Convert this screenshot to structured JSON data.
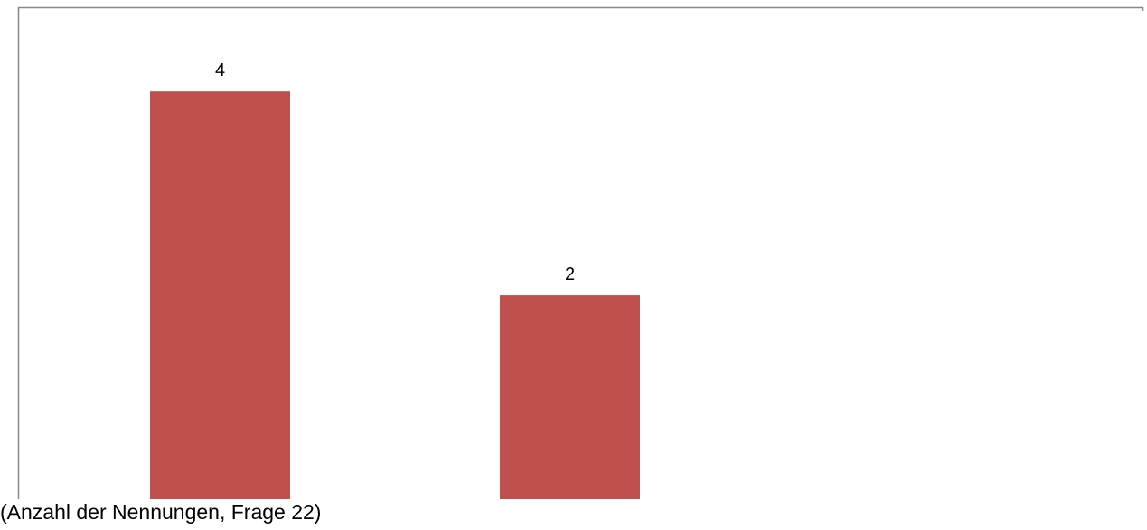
{
  "chart_data": {
    "type": "bar",
    "categories": [
      "",
      ""
    ],
    "values": [
      4,
      2
    ],
    "data_labels": [
      "4",
      "2"
    ],
    "ylim": [
      0,
      4.4
    ],
    "grid": false,
    "legend": "none",
    "bar_color": "#c0504d",
    "frame_color": "#888888"
  },
  "caption": "(Anzahl der Nennungen, Frage 22)"
}
